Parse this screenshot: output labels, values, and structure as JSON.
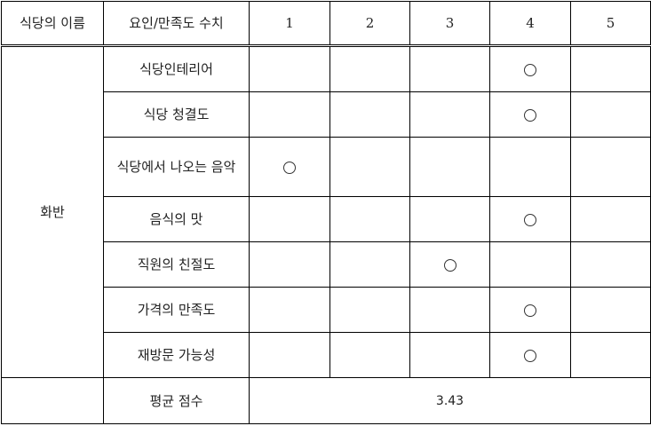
{
  "header": {
    "restaurant_name": "식당의 이름",
    "factor_score": "요인/만족도 수치",
    "scores": [
      "1",
      "2",
      "3",
      "4",
      "5"
    ]
  },
  "restaurant": "화반",
  "rows": [
    {
      "factor": "식당인테리어",
      "score": 4
    },
    {
      "factor": "식당 청결도",
      "score": 4
    },
    {
      "factor": "식당에서 나오는 음악",
      "score": 1
    },
    {
      "factor": "음식의 맛",
      "score": 4
    },
    {
      "factor": "직원의 친절도",
      "score": 3
    },
    {
      "factor": "가격의 만족도",
      "score": 4
    },
    {
      "factor": "재방문 가능성",
      "score": 4
    }
  ],
  "average": {
    "label": "평균 점수",
    "value": "3.43"
  }
}
